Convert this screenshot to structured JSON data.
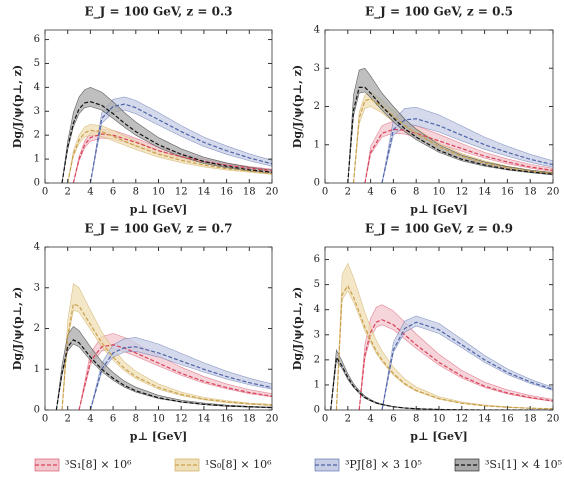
{
  "chart_data": [
    {
      "type": "line",
      "title": "E_J = 100 GeV, z = 0.3",
      "x_label": "p⊥ [GeV]",
      "y_label": "Dg/J/ψ(p⊥, z)",
      "x": [
        1.5,
        2,
        2.5,
        3,
        3.5,
        4,
        5,
        6,
        7,
        8,
        10,
        12,
        14,
        16,
        18,
        20
      ],
      "xlim": [
        0,
        20
      ],
      "xticks": [
        0,
        2,
        4,
        6,
        8,
        10,
        12,
        14,
        16,
        18,
        20
      ],
      "ylim": [
        0,
        6.4
      ],
      "yticks": [
        0,
        1,
        2,
        3,
        4,
        5,
        6
      ],
      "series": [
        {
          "name": "³S₁[8] × 10⁶",
          "color": "#d9415a",
          "band_color": "#f2c6cd",
          "values": [
            null,
            null,
            0,
            1.0,
            1.6,
            1.9,
            2.05,
            2.0,
            1.85,
            1.7,
            1.35,
            1.1,
            0.9,
            0.75,
            0.62,
            0.52
          ],
          "upper": [
            null,
            null,
            0,
            1.1,
            1.76,
            2.1,
            2.25,
            2.2,
            2.05,
            1.87,
            1.5,
            1.22,
            1.0,
            0.83,
            0.69,
            0.58
          ],
          "lower": [
            null,
            null,
            0,
            0.92,
            1.47,
            1.75,
            1.88,
            1.84,
            1.7,
            1.56,
            1.24,
            1.01,
            0.83,
            0.69,
            0.57,
            0.48
          ]
        },
        {
          "name": "¹S₀[8] × 10⁶",
          "color": "#c9a04a",
          "band_color": "#efdfb6",
          "values": [
            null,
            0,
            1.2,
            1.8,
            2.1,
            2.2,
            2.15,
            1.95,
            1.75,
            1.55,
            1.2,
            0.95,
            0.75,
            0.6,
            0.5,
            0.4
          ],
          "upper": [
            null,
            0,
            1.35,
            2.0,
            2.35,
            2.45,
            2.4,
            2.2,
            1.97,
            1.75,
            1.36,
            1.08,
            0.86,
            0.69,
            0.57,
            0.46
          ],
          "lower": [
            null,
            0,
            1.1,
            1.65,
            1.92,
            2.0,
            1.95,
            1.77,
            1.58,
            1.4,
            1.08,
            0.85,
            0.67,
            0.54,
            0.45,
            0.36
          ]
        },
        {
          "name": "³PJ[8] × 3 10⁵",
          "color": "#4f63a8",
          "band_color": "#c6cde4",
          "values": [
            null,
            null,
            null,
            null,
            null,
            0,
            2.7,
            3.2,
            3.3,
            3.15,
            2.65,
            2.15,
            1.7,
            1.35,
            1.05,
            0.8
          ],
          "upper": [
            null,
            null,
            null,
            null,
            null,
            0,
            2.95,
            3.5,
            3.6,
            3.45,
            2.95,
            2.4,
            1.92,
            1.55,
            1.22,
            0.95
          ],
          "lower": [
            null,
            null,
            null,
            null,
            null,
            0,
            2.5,
            2.95,
            3.05,
            2.9,
            2.42,
            1.95,
            1.53,
            1.2,
            0.93,
            0.7
          ]
        },
        {
          "name": "³S₁[1] × 4 10⁵",
          "color": "#111111",
          "band_color": "#a9a9a9",
          "values": [
            0,
            1.5,
            2.5,
            3.1,
            3.35,
            3.4,
            3.25,
            2.9,
            2.5,
            2.15,
            1.6,
            1.2,
            0.9,
            0.7,
            0.55,
            0.45
          ],
          "upper": [
            0,
            1.75,
            2.95,
            3.6,
            3.9,
            4.0,
            3.8,
            3.4,
            2.95,
            2.55,
            1.9,
            1.43,
            1.08,
            0.84,
            0.66,
            0.54
          ],
          "lower": [
            0,
            1.4,
            2.35,
            2.9,
            3.15,
            3.2,
            3.05,
            2.7,
            2.33,
            2.0,
            1.48,
            1.1,
            0.82,
            0.64,
            0.5,
            0.41
          ]
        }
      ]
    },
    {
      "type": "line",
      "title": "E_J = 100 GeV, z = 0.5",
      "x_label": "p⊥ [GeV]",
      "y_label": "Dg/J/ψ(p⊥, z)",
      "x": [
        2,
        2.5,
        3,
        3.5,
        4,
        5,
        6,
        7,
        8,
        10,
        12,
        14,
        16,
        18,
        20
      ],
      "xlim": [
        0,
        20
      ],
      "xticks": [
        0,
        2,
        4,
        6,
        8,
        10,
        12,
        14,
        16,
        18,
        20
      ],
      "ylim": [
        0,
        4
      ],
      "yticks": [
        0,
        1,
        2,
        3,
        4
      ],
      "series": [
        {
          "color": "#d9415a",
          "band_color": "#f2c6cd",
          "values": [
            null,
            null,
            null,
            0,
            0.8,
            1.3,
            1.4,
            1.38,
            1.3,
            1.1,
            0.9,
            0.7,
            0.55,
            0.42,
            0.33
          ],
          "upper": [
            null,
            null,
            null,
            0,
            0.95,
            1.5,
            1.62,
            1.58,
            1.5,
            1.27,
            1.03,
            0.8,
            0.63,
            0.49,
            0.38
          ],
          "lower": [
            null,
            null,
            null,
            0,
            0.75,
            1.2,
            1.3,
            1.28,
            1.2,
            1.02,
            0.83,
            0.65,
            0.5,
            0.39,
            0.3
          ]
        },
        {
          "color": "#c9a04a",
          "band_color": "#efdfb6",
          "values": [
            null,
            0,
            1.7,
            2.15,
            2.2,
            2.0,
            1.75,
            1.5,
            1.3,
            0.95,
            0.7,
            0.52,
            0.4,
            0.31,
            0.25
          ],
          "upper": [
            null,
            0,
            1.85,
            2.3,
            2.38,
            2.17,
            1.9,
            1.63,
            1.42,
            1.04,
            0.77,
            0.58,
            0.44,
            0.34,
            0.28
          ],
          "lower": [
            null,
            0,
            1.55,
            1.95,
            2.0,
            1.83,
            1.6,
            1.37,
            1.19,
            0.87,
            0.64,
            0.48,
            0.36,
            0.28,
            0.23
          ]
        },
        {
          "color": "#4f63a8",
          "band_color": "#c6cde4",
          "values": [
            null,
            null,
            null,
            null,
            null,
            0,
            1.4,
            1.65,
            1.68,
            1.5,
            1.25,
            1.0,
            0.8,
            0.62,
            0.48
          ],
          "upper": [
            null,
            null,
            null,
            null,
            null,
            0,
            1.65,
            1.95,
            1.98,
            1.78,
            1.49,
            1.2,
            0.96,
            0.75,
            0.58
          ],
          "lower": [
            null,
            null,
            null,
            null,
            null,
            0,
            1.25,
            1.48,
            1.5,
            1.33,
            1.1,
            0.88,
            0.7,
            0.54,
            0.41
          ]
        },
        {
          "color": "#111111",
          "band_color": "#a9a9a9",
          "values": [
            0,
            1.9,
            2.5,
            2.5,
            2.35,
            2.0,
            1.7,
            1.42,
            1.2,
            0.85,
            0.62,
            0.47,
            0.36,
            0.29,
            0.23
          ],
          "upper": [
            0,
            2.3,
            2.95,
            3.0,
            2.8,
            2.35,
            2.0,
            1.67,
            1.41,
            1.0,
            0.73,
            0.55,
            0.43,
            0.34,
            0.27
          ],
          "lower": [
            0,
            1.75,
            2.35,
            2.38,
            2.23,
            1.9,
            1.6,
            1.34,
            1.13,
            0.8,
            0.58,
            0.44,
            0.34,
            0.27,
            0.21
          ]
        }
      ]
    },
    {
      "type": "line",
      "title": "E_J = 100 GeV, z = 0.7",
      "x_label": "p⊥ [GeV]",
      "y_label": "Dg/J/ψ(p⊥, z)",
      "x": [
        1,
        1.5,
        2,
        2.5,
        3,
        4,
        5,
        6,
        7,
        8,
        10,
        12,
        14,
        16,
        18,
        20
      ],
      "xlim": [
        0,
        20
      ],
      "xticks": [
        0,
        2,
        4,
        6,
        8,
        10,
        12,
        14,
        16,
        18,
        20
      ],
      "ylim": [
        0,
        4
      ],
      "yticks": [
        0,
        1,
        2,
        3,
        4
      ],
      "series": [
        {
          "color": "#d9415a",
          "band_color": "#f2c6cd",
          "values": [
            null,
            null,
            null,
            null,
            0,
            1.2,
            1.55,
            1.6,
            1.52,
            1.4,
            1.15,
            0.9,
            0.7,
            0.55,
            0.43,
            0.34
          ],
          "upper": [
            null,
            null,
            null,
            null,
            0,
            1.4,
            1.8,
            1.88,
            1.78,
            1.64,
            1.34,
            1.05,
            0.82,
            0.64,
            0.5,
            0.4
          ],
          "lower": [
            null,
            null,
            null,
            null,
            0,
            1.1,
            1.45,
            1.5,
            1.43,
            1.32,
            1.08,
            0.85,
            0.66,
            0.52,
            0.4,
            0.32
          ]
        },
        {
          "color": "#c9a04a",
          "band_color": "#efdfb6",
          "values": [
            null,
            0,
            1.8,
            2.6,
            2.55,
            2.1,
            1.65,
            1.3,
            1.02,
            0.82,
            0.55,
            0.38,
            0.27,
            0.2,
            0.15,
            0.12
          ],
          "upper": [
            null,
            0,
            2.2,
            3.1,
            3.0,
            2.45,
            1.92,
            1.5,
            1.18,
            0.95,
            0.64,
            0.44,
            0.31,
            0.23,
            0.17,
            0.14
          ],
          "lower": [
            null,
            0,
            1.7,
            2.45,
            2.4,
            1.98,
            1.55,
            1.22,
            0.96,
            0.77,
            0.51,
            0.35,
            0.25,
            0.18,
            0.14,
            0.11
          ]
        },
        {
          "color": "#4f63a8",
          "band_color": "#c6cde4",
          "values": [
            null,
            null,
            null,
            null,
            null,
            0,
            1.0,
            1.4,
            1.53,
            1.55,
            1.4,
            1.2,
            1.0,
            0.82,
            0.67,
            0.55
          ],
          "upper": [
            null,
            null,
            null,
            null,
            null,
            0,
            1.15,
            1.6,
            1.75,
            1.78,
            1.62,
            1.39,
            1.16,
            0.95,
            0.78,
            0.64
          ],
          "lower": [
            null,
            null,
            null,
            null,
            null,
            0,
            0.93,
            1.3,
            1.42,
            1.44,
            1.3,
            1.11,
            0.93,
            0.76,
            0.62,
            0.51
          ]
        },
        {
          "color": "#111111",
          "band_color": "#a9a9a9",
          "values": [
            0,
            0.9,
            1.55,
            1.72,
            1.65,
            1.3,
            1.0,
            0.78,
            0.6,
            0.47,
            0.3,
            0.2,
            0.14,
            0.1,
            0.08,
            0.06
          ],
          "upper": [
            0,
            1.1,
            1.85,
            2.05,
            1.95,
            1.55,
            1.19,
            0.92,
            0.71,
            0.56,
            0.36,
            0.24,
            0.17,
            0.12,
            0.09,
            0.07
          ],
          "lower": [
            0,
            0.85,
            1.45,
            1.62,
            1.55,
            1.22,
            0.94,
            0.73,
            0.56,
            0.44,
            0.28,
            0.19,
            0.13,
            0.09,
            0.07,
            0.05
          ]
        }
      ]
    },
    {
      "type": "line",
      "title": "E_J = 100 GeV, z = 0.9",
      "x_label": "p⊥ [GeV]",
      "y_label": "Dg/J/ψ(p⊥, z)",
      "x": [
        0.5,
        1,
        1.5,
        2,
        2.5,
        3,
        3.5,
        4,
        4.5,
        5,
        6,
        7,
        8,
        10,
        12,
        14,
        16,
        18,
        20
      ],
      "xlim": [
        0,
        20
      ],
      "xticks": [
        0,
        2,
        4,
        6,
        8,
        10,
        12,
        14,
        16,
        18,
        20
      ],
      "ylim": [
        0,
        6.5
      ],
      "yticks": [
        0,
        1,
        2,
        3,
        4,
        5,
        6
      ],
      "series": [
        {
          "color": "#d9415a",
          "band_color": "#f2c6cd",
          "values": [
            null,
            null,
            null,
            null,
            null,
            0,
            2.2,
            3.1,
            3.5,
            3.6,
            3.4,
            3.0,
            2.6,
            1.9,
            1.35,
            0.95,
            0.68,
            0.5,
            0.36
          ],
          "upper": [
            null,
            null,
            null,
            null,
            null,
            0,
            2.6,
            3.65,
            4.1,
            4.2,
            3.95,
            3.5,
            3.03,
            2.22,
            1.58,
            1.11,
            0.8,
            0.58,
            0.42
          ],
          "lower": [
            null,
            null,
            null,
            null,
            null,
            0,
            2.05,
            2.9,
            3.3,
            3.4,
            3.2,
            2.83,
            2.45,
            1.79,
            1.27,
            0.9,
            0.64,
            0.47,
            0.34
          ]
        },
        {
          "color": "#c9a04a",
          "band_color": "#efdfb6",
          "values": [
            null,
            0,
            4.6,
            4.95,
            4.5,
            3.9,
            3.3,
            2.8,
            2.35,
            2.0,
            1.45,
            1.05,
            0.78,
            0.45,
            0.27,
            0.17,
            0.11,
            0.07,
            0.05
          ],
          "upper": [
            null,
            0,
            5.4,
            5.85,
            5.3,
            4.6,
            3.9,
            3.3,
            2.78,
            2.36,
            1.71,
            1.24,
            0.92,
            0.53,
            0.32,
            0.2,
            0.13,
            0.08,
            0.06
          ],
          "lower": [
            null,
            0,
            4.4,
            4.75,
            4.3,
            3.75,
            3.15,
            2.68,
            2.25,
            1.92,
            1.39,
            1.0,
            0.75,
            0.43,
            0.26,
            0.16,
            0.1,
            0.07,
            0.05
          ]
        },
        {
          "color": "#4f63a8",
          "band_color": "#c6cde4",
          "values": [
            null,
            null,
            null,
            null,
            null,
            null,
            null,
            null,
            null,
            0,
            2.4,
            3.25,
            3.5,
            3.2,
            2.6,
            2.0,
            1.5,
            1.12,
            0.82
          ],
          "upper": [
            null,
            null,
            null,
            null,
            null,
            null,
            null,
            null,
            null,
            0,
            2.7,
            3.55,
            3.75,
            3.45,
            2.82,
            2.18,
            1.64,
            1.23,
            0.9
          ],
          "lower": [
            null,
            null,
            null,
            null,
            null,
            null,
            null,
            null,
            null,
            0,
            2.3,
            3.1,
            3.35,
            3.05,
            2.48,
            1.9,
            1.42,
            1.06,
            0.78
          ]
        },
        {
          "color": "#111111",
          "band_color": "#a9a9a9",
          "values": [
            0,
            2.1,
            1.75,
            1.3,
            0.95,
            0.7,
            0.5,
            0.38,
            0.28,
            0.22,
            0.13,
            0.08,
            0.05,
            0.02,
            0.01,
            0,
            0,
            0,
            0
          ],
          "upper": [
            0,
            2.4,
            1.95,
            1.45,
            1.05,
            0.78,
            0.56,
            0.42,
            0.31,
            0.24,
            0.14,
            0.09,
            0.06,
            0.03,
            0.01,
            0.01,
            0,
            0,
            0
          ],
          "lower": [
            0,
            1.95,
            1.65,
            1.22,
            0.9,
            0.66,
            0.47,
            0.36,
            0.26,
            0.2,
            0.12,
            0.07,
            0.05,
            0.02,
            0.01,
            0,
            0,
            0,
            0
          ]
        }
      ]
    }
  ]
}
